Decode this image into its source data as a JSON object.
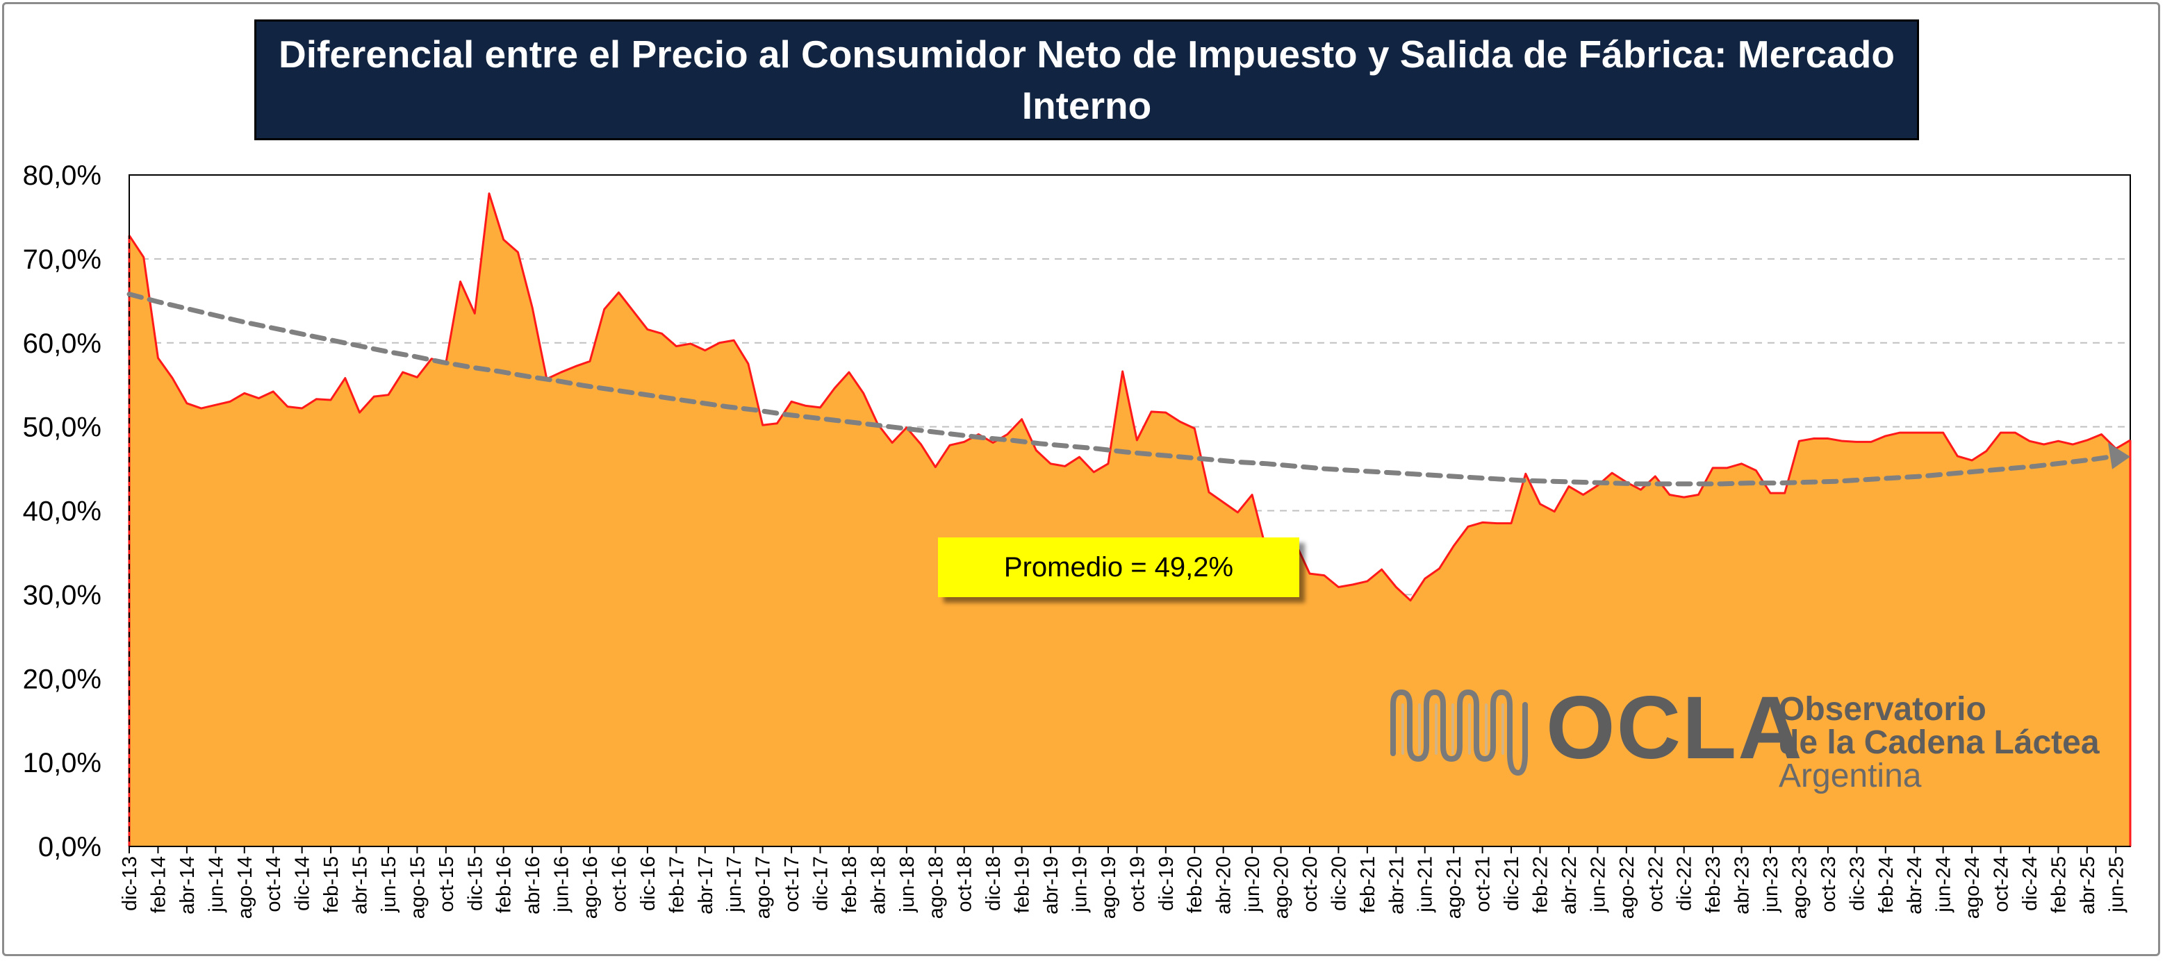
{
  "title": "Diferencial entre el Precio al Consumidor Neto de Impuesto y Salida de Fábrica: Mercado Interno",
  "annotation": "Promedio = 49,2%",
  "logo": {
    "acronym": "OCLA",
    "line1": "Observatorio",
    "line2": "de la Cadena Láctea",
    "line3": "Argentina"
  },
  "colors": {
    "title_bg": "#112441",
    "area_fill": "#ffad3a",
    "area_line": "#ff1a1a",
    "trend": "#808080",
    "annotation_bg": "#ffff00",
    "logo": "#5e5e5e"
  },
  "chart_data": {
    "type": "area",
    "ylim": [
      0,
      80
    ],
    "y_ticks": [
      "0,0%",
      "10,0%",
      "20,0%",
      "30,0%",
      "40,0%",
      "50,0%",
      "60,0%",
      "70,0%",
      "80,0%"
    ],
    "x_tick_labels": [
      "dic-13",
      "feb-14",
      "abr-14",
      "jun-14",
      "ago-14",
      "oct-14",
      "dic-14",
      "feb-15",
      "abr-15",
      "jun-15",
      "ago-15",
      "oct-15",
      "dic-15",
      "feb-16",
      "abr-16",
      "jun-16",
      "ago-16",
      "oct-16",
      "dic-16",
      "feb-17",
      "abr-17",
      "jun-17",
      "ago-17",
      "oct-17",
      "dic-17",
      "feb-18",
      "abr-18",
      "jun-18",
      "ago-18",
      "oct-18",
      "dic-18",
      "feb-19",
      "abr-19",
      "jun-19",
      "ago-19",
      "oct-19",
      "dic-19",
      "feb-20",
      "abr-20",
      "jun-20",
      "ago-20",
      "oct-20",
      "dic-20",
      "feb-21",
      "abr-21",
      "jun-21",
      "ago-21",
      "oct-21",
      "dic-21",
      "feb-22",
      "abr-22",
      "jun-22",
      "ago-22",
      "oct-22",
      "dic-22",
      "feb-23",
      "abr-23",
      "jun-23",
      "ago-23",
      "oct-23",
      "dic-23",
      "feb-24",
      "abr-24",
      "jun-24",
      "ago-24",
      "oct-24",
      "dic-24",
      "feb-25",
      "abr-25",
      "jun-25"
    ],
    "series": [
      {
        "values": [
          72.8,
          70.2,
          58.2,
          55.8,
          52.8,
          52.2,
          52.6,
          53,
          54,
          53.4,
          54.2,
          52.4,
          52.2,
          53.3,
          53.2,
          55.8,
          51.7,
          53.6,
          53.8,
          56.5,
          55.9,
          58.1,
          57.6,
          67.3,
          63.5,
          77.8,
          72.3,
          70.8,
          64.2,
          55.7,
          56.5,
          57.2,
          57.8,
          64,
          66,
          63.8,
          61.6,
          61.1,
          59.6,
          59.9,
          59.1,
          60,
          60.3,
          57.5,
          50.2,
          50.4,
          53,
          52.5,
          52.3,
          54.6,
          56.5,
          54,
          50.3,
          48.1,
          49.9,
          47.9,
          45.2,
          47.8,
          48.2,
          49.1,
          48.1,
          49.1,
          50.9,
          47.2,
          45.6,
          45.3,
          46.4,
          44.6,
          45.6,
          56.6,
          48.4,
          51.8,
          51.7,
          50.6,
          49.8,
          42.2,
          41,
          39.8,
          41.9,
          35.2,
          35.8,
          36.2,
          32.5,
          32.3,
          30.9,
          31.2,
          31.6,
          33,
          30.9,
          29.3,
          31.9,
          33.1,
          35.8,
          38.1,
          38.6,
          38.5,
          38.5,
          44.4,
          40.8,
          39.9,
          42.9,
          41.9,
          43,
          44.5,
          43.4,
          42.5,
          44.1,
          41.9,
          41.6,
          41.9,
          45.1,
          45.1,
          45.6,
          44.8,
          42.1,
          42.1,
          48.3,
          48.6,
          48.6,
          48.3,
          48.2,
          48.2,
          48.9,
          49.3,
          49.3,
          49.3,
          49.3,
          46.5,
          46,
          47.1,
          49.3,
          49.3,
          48.3,
          47.9,
          48.3,
          47.9,
          48.4,
          49.1,
          47.4,
          48.4
        ]
      }
    ],
    "trend": {
      "values": [
        65.8,
        64.9,
        64.1,
        63.3,
        62.5,
        61.8,
        61.1,
        60.4,
        59.7,
        59,
        58.4,
        57.7,
        57.1,
        56.6,
        56,
        55.5,
        54.9,
        54.4,
        53.9,
        53.4,
        52.9,
        52.4,
        52,
        51.5,
        51.1,
        50.7,
        50.3,
        49.9,
        49.5,
        49.1,
        48.7,
        48.4,
        48,
        47.7,
        47.4,
        47,
        46.7,
        46.4,
        46.1,
        45.8,
        45.6,
        45.3,
        45,
        44.8,
        44.6,
        44.4,
        44.2,
        44,
        43.8,
        43.6,
        43.5,
        43.4,
        43.3,
        43.2,
        43.2,
        43.2,
        43.2,
        43.3,
        43.3,
        43.4,
        43.5,
        43.7,
        43.9,
        44.1,
        44.4,
        44.7,
        45,
        45.3,
        45.7,
        46.1,
        46.6
      ]
    },
    "grid": true,
    "legend": "none"
  }
}
